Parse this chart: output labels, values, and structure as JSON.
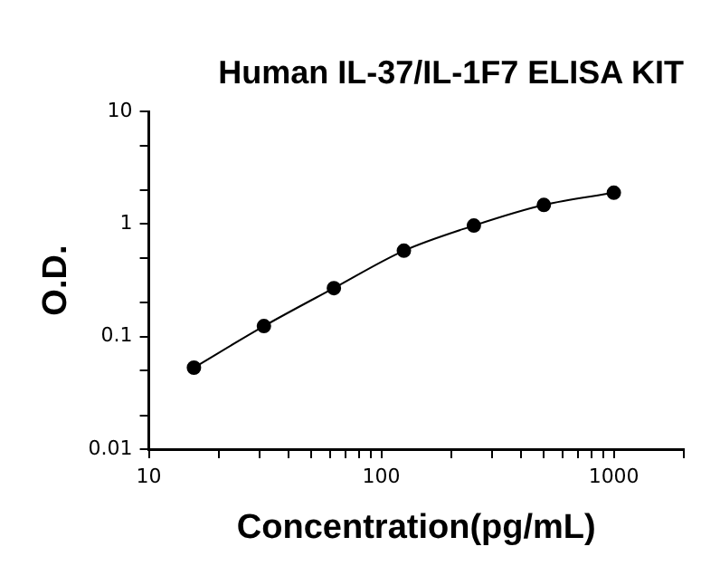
{
  "chart_data": {
    "type": "line",
    "title": "Human IL-37/IL-1F7 ELISA KIT",
    "xlabel": "Concentration(pg/mL)",
    "ylabel": "O.D.",
    "log": "xy",
    "x": [
      15.625,
      31.25,
      62.5,
      125,
      250,
      500,
      1000
    ],
    "series": [
      {
        "color": "#000000",
        "values": [
          0.053,
          0.124,
          0.27,
          0.58,
          0.97,
          1.48,
          1.9
        ]
      }
    ],
    "xlim": [
      10,
      2000
    ],
    "xticks": [
      10,
      {
        "value": 20,
        "label": null
      },
      {
        "value": 30,
        "label": null
      },
      {
        "value": 40,
        "label": null
      },
      {
        "value": 50,
        "label": null
      },
      {
        "value": 60,
        "label": null
      },
      {
        "value": 70,
        "label": null
      },
      {
        "value": 80,
        "label": null
      },
      {
        "value": 90,
        "label": null
      },
      100,
      {
        "value": 200,
        "label": null
      },
      {
        "value": 300,
        "label": null
      },
      {
        "value": 400,
        "label": null
      },
      {
        "value": 500,
        "label": null
      },
      {
        "value": 600,
        "label": null
      },
      {
        "value": 700,
        "label": null
      },
      {
        "value": 800,
        "label": null
      },
      {
        "value": 900,
        "label": null
      },
      1000,
      {
        "value": 2000,
        "label": null
      }
    ],
    "ylim": [
      0.01,
      10
    ],
    "yticks": [
      0.01,
      {
        "value": 0.02,
        "label": null
      },
      {
        "value": 0.05,
        "label": null
      },
      0.1,
      {
        "value": 0.2,
        "label": null
      },
      {
        "value": 0.5,
        "label": null
      },
      1,
      {
        "value": 2,
        "label": null
      },
      {
        "value": 5,
        "label": null
      },
      10
    ],
    "grid": false,
    "legend": false,
    "marker": "circle",
    "line_style": "solid"
  }
}
